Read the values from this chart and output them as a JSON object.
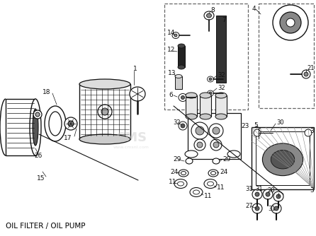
{
  "title": "OIL FILTER / OIL PUMP",
  "bg_color": "#ffffff",
  "title_fontsize": 7.5,
  "fig_width": 4.46,
  "fig_height": 3.34,
  "dpi": 100,
  "label_color": "#000000",
  "line_color": "#111111",
  "draw_color": "#111111",
  "gray_fill": "#aaaaaa",
  "light_gray": "#dddddd",
  "mid_gray": "#888888",
  "watermark_color": "#cccccc"
}
